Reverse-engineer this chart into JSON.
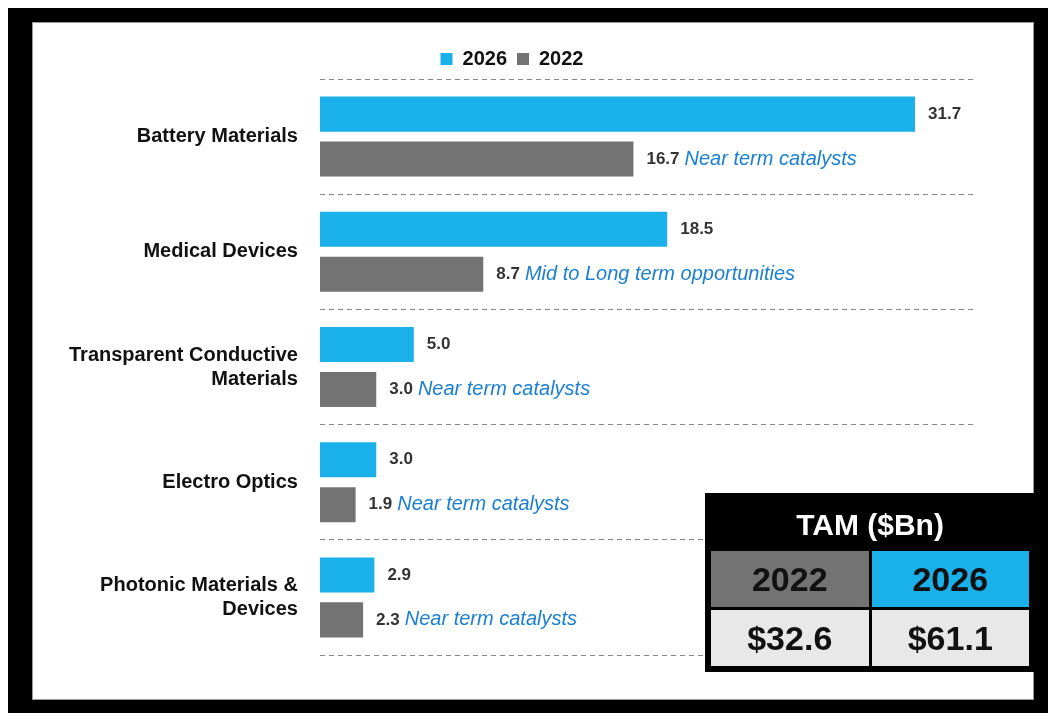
{
  "chart_data": {
    "type": "bar",
    "orientation": "horizontal",
    "categories": [
      "Battery Materials",
      "Medical Devices",
      "Transparent Conductive Materials",
      "Electro Optics",
      "Photonic Materials & Devices"
    ],
    "series": [
      {
        "name": "2026",
        "color": "#1ab0ea",
        "values": [
          31.7,
          18.5,
          5.0,
          3.0,
          2.9
        ],
        "value_labels": [
          "31.7",
          "18.5",
          "5.0",
          "3.0",
          "2.9"
        ]
      },
      {
        "name": "2022",
        "color": "#737373",
        "values": [
          16.7,
          8.7,
          3.0,
          1.9,
          2.3
        ],
        "value_labels": [
          "16.7",
          "8.7",
          "3.0",
          "1.9",
          "2.3"
        ]
      }
    ],
    "legend": "top",
    "grid": "y",
    "annotations": [
      {
        "text": "Near term catalysts",
        "x": 16.7,
        "y": "Battery Materials"
      },
      {
        "text": "Mid to Long term opportunities",
        "x": 8.7,
        "y": "Medical Devices"
      },
      {
        "text": "Near term catalysts",
        "x": 3.0,
        "y": "Transparent Conductive Materials"
      },
      {
        "text": "Near term catalysts",
        "x": 1.9,
        "y": "Electro Optics"
      },
      {
        "text": "Near term catalysts",
        "x": 2.3,
        "y": "Photonic Materials & Devices"
      },
      "TAM ($Bn)",
      "2022",
      "2026",
      "$32.6",
      "$61.1"
    ]
  }
}
